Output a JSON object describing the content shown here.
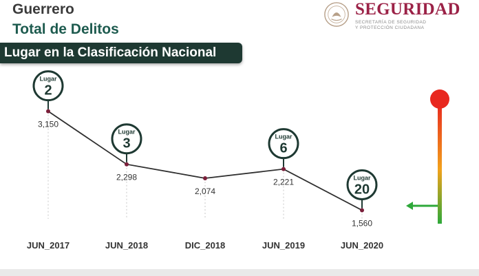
{
  "header": {
    "state": "Guerrero",
    "metric": "Total de Delitos",
    "banner": "Lugar en la Clasificación Nacional"
  },
  "logo": {
    "name": "SEGURIDAD",
    "subtitle_line1": "SECRETARÍA DE SEGURIDAD",
    "subtitle_line2": "Y PROTECCIÓN CIUDADANA",
    "icon": "mexico-seal-icon"
  },
  "chart_data": {
    "type": "line",
    "categories": [
      "JUN_2017",
      "JUN_2018",
      "DIC_2018",
      "JUN_2019",
      "JUN_2020"
    ],
    "values": [
      3150,
      2298,
      2074,
      2221,
      1560
    ],
    "value_labels": [
      "3,150",
      "2,298",
      "2,074",
      "2,221",
      "1,560"
    ],
    "ranks": [
      {
        "index": 0,
        "label": "Lugar",
        "value": "2"
      },
      {
        "index": 1,
        "label": "Lugar",
        "value": "3"
      },
      {
        "index": 3,
        "label": "Lugar",
        "value": "6"
      },
      {
        "index": 4,
        "label": "Lugar",
        "value": "20"
      }
    ],
    "ylim": [
      1200,
      3500
    ],
    "colors": {
      "line": "#2f2f2f",
      "point": "#7a1f3a",
      "badge_stroke": "#1e3932",
      "badge_fill": "#ffffff"
    }
  },
  "indicator": {
    "icon": "traffic-light-scale-icon",
    "arrow_icon": "left-arrow-icon",
    "colors": {
      "top": "#e8281f",
      "middle": "#f2a21b",
      "bottom": "#2ea83a",
      "arrow": "#2ea83a"
    }
  }
}
